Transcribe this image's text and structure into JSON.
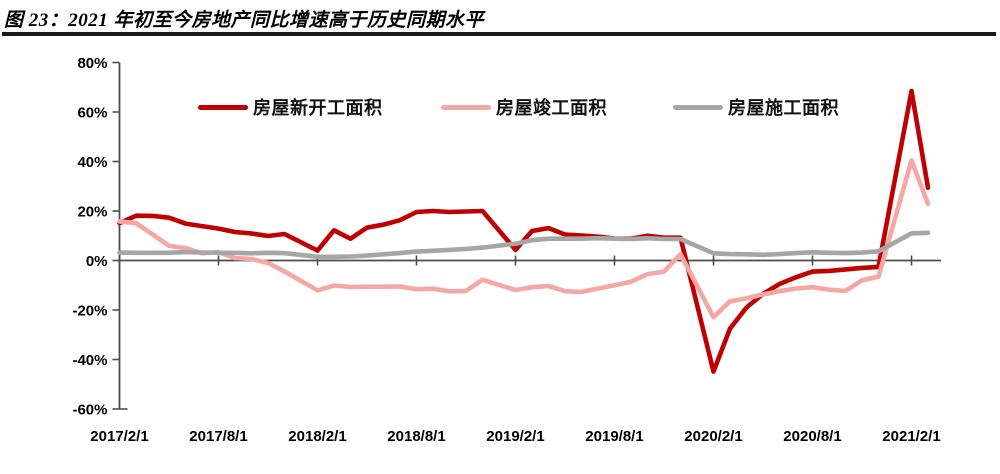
{
  "figure": {
    "title": "图 23：2021 年初至今房地产同比增速高于历史同期水平"
  },
  "chart_data": {
    "type": "line",
    "unit": "%",
    "grid": false,
    "legend_position": "top",
    "ylim": [
      -60,
      80
    ],
    "y_ticks": [
      "80%",
      "60%",
      "40%",
      "20%",
      "0%",
      "-20%",
      "-40%",
      "-60%"
    ],
    "x_ticks": [
      "2017/2/1",
      "2017/8/1",
      "2018/2/1",
      "2018/8/1",
      "2019/2/1",
      "2019/8/1",
      "2020/2/1",
      "2020/8/1",
      "2021/2/1"
    ],
    "x": [
      "2017/2",
      "2017/3",
      "2017/4",
      "2017/5",
      "2017/6",
      "2017/7",
      "2017/8",
      "2017/9",
      "2017/10",
      "2017/11",
      "2017/12",
      "2018/2",
      "2018/3",
      "2018/4",
      "2018/5",
      "2018/6",
      "2018/7",
      "2018/8",
      "2018/9",
      "2018/10",
      "2018/11",
      "2018/12",
      "2019/2",
      "2019/3",
      "2019/4",
      "2019/5",
      "2019/6",
      "2019/7",
      "2019/8",
      "2019/9",
      "2019/10",
      "2019/11",
      "2019/12",
      "2020/2",
      "2020/3",
      "2020/4",
      "2020/5",
      "2020/6",
      "2020/7",
      "2020/8",
      "2020/9",
      "2020/10",
      "2020/11",
      "2020/12",
      "2021/2",
      "2021/3"
    ],
    "series": [
      {
        "name": "房屋新开工面积",
        "color": "#c00000",
        "values": [
          15.1,
          18.1,
          18.0,
          17.3,
          14.9,
          13.9,
          12.9,
          11.5,
          10.9,
          9.9,
          10.7,
          4.0,
          12.2,
          8.8,
          13.3,
          14.5,
          16.3,
          19.6,
          20.0,
          19.6,
          19.8,
          20.0,
          4.3,
          11.9,
          13.1,
          10.5,
          10.1,
          9.6,
          8.9,
          8.8,
          10.0,
          9.2,
          9.2,
          -44.9,
          -27.5,
          -19.0,
          -13.5,
          -9.5,
          -6.8,
          -4.5,
          -4.2,
          -3.6,
          -3.0,
          -2.6,
          68.5,
          29.4
        ]
      },
      {
        "name": "房屋竣工面积",
        "color": "#f4a7a3",
        "values": [
          15.8,
          15.1,
          10.6,
          5.9,
          5.0,
          2.9,
          3.4,
          1.0,
          0.6,
          -1.0,
          -4.4,
          -12.1,
          -10.1,
          -10.7,
          -10.6,
          -10.6,
          -10.5,
          -11.6,
          -11.4,
          -12.5,
          -12.3,
          -7.8,
          -11.9,
          -10.8,
          -10.3,
          -12.4,
          -12.7,
          -11.3,
          -10.0,
          -8.6,
          -5.5,
          -4.5,
          2.6,
          -22.9,
          -16.5,
          -15.3,
          -13.7,
          -12.4,
          -11.3,
          -10.8,
          -11.8,
          -12.3,
          -8.0,
          -6.5,
          40.4,
          22.9
        ]
      },
      {
        "name": "房屋施工面积",
        "color": "#a6a6a6",
        "values": [
          3.2,
          3.1,
          3.1,
          3.1,
          3.4,
          3.2,
          3.1,
          3.1,
          2.9,
          3.1,
          3.0,
          1.5,
          1.5,
          1.6,
          2.0,
          2.5,
          3.0,
          3.6,
          3.9,
          4.3,
          4.7,
          5.2,
          6.8,
          8.2,
          8.8,
          8.8,
          8.8,
          9.0,
          8.8,
          8.7,
          9.0,
          8.7,
          8.7,
          2.9,
          2.6,
          2.5,
          2.3,
          2.6,
          3.0,
          3.3,
          3.1,
          3.0,
          3.2,
          3.7,
          11.0,
          11.2
        ]
      }
    ]
  }
}
